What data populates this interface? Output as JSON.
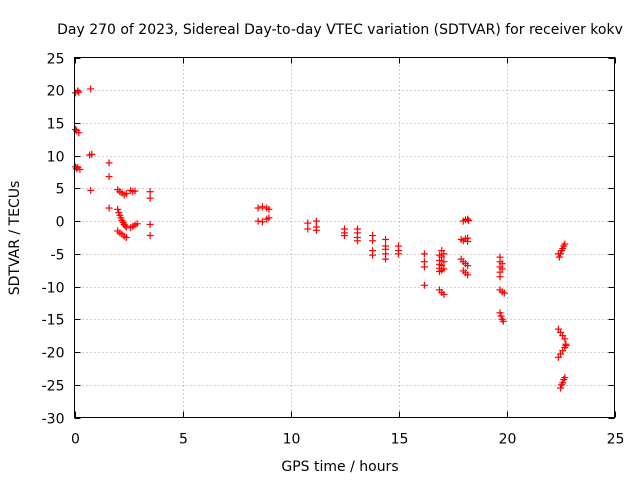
{
  "chart_data": {
    "type": "scatter",
    "title": "Day 270 of 2023, Sidereal Day-to-day VTEC variation (SDTVAR) for receiver kokv",
    "xlabel": "GPS time / hours",
    "ylabel": "SDTVAR / TECUs",
    "xlim": [
      0,
      25
    ],
    "ylim": [
      -30,
      25
    ],
    "xticks": [
      0,
      5,
      10,
      15,
      20,
      25
    ],
    "yticks": [
      -30,
      -25,
      -20,
      -15,
      -10,
      -5,
      0,
      5,
      10,
      15,
      20,
      25
    ],
    "xtick_labels": [
      "0",
      "5",
      "10",
      "15",
      "20",
      "25"
    ],
    "ytick_labels": [
      "-30",
      "-25",
      "-20",
      "-15",
      "-10",
      "-5",
      "0",
      "5",
      "10",
      "15",
      "20",
      "25"
    ],
    "grid": true,
    "marker": "+",
    "color": "#ff0000",
    "series": [
      {
        "name": "SDTVAR",
        "points": [
          [
            0.05,
            19.6
          ],
          [
            0.15,
            19.9
          ],
          [
            0.2,
            19.7
          ],
          [
            0.75,
            20.2
          ],
          [
            0.05,
            14.0
          ],
          [
            0.1,
            13.8
          ],
          [
            0.2,
            13.5
          ],
          [
            0.05,
            8.3
          ],
          [
            0.1,
            8.0
          ],
          [
            0.15,
            8.2
          ],
          [
            0.25,
            7.9
          ],
          [
            0.7,
            10.1
          ],
          [
            0.8,
            10.2
          ],
          [
            0.75,
            4.7
          ],
          [
            1.6,
            8.9
          ],
          [
            1.6,
            6.8
          ],
          [
            1.6,
            2.0
          ],
          [
            2.0,
            4.8
          ],
          [
            2.1,
            4.5
          ],
          [
            2.2,
            4.3
          ],
          [
            2.3,
            4.0
          ],
          [
            2.4,
            4.2
          ],
          [
            2.0,
            1.8
          ],
          [
            2.05,
            1.3
          ],
          [
            2.1,
            0.9
          ],
          [
            2.15,
            0.5
          ],
          [
            2.2,
            0.1
          ],
          [
            2.25,
            -0.2
          ],
          [
            2.3,
            -0.5
          ],
          [
            2.35,
            -0.7
          ],
          [
            2.4,
            -0.9
          ],
          [
            2.0,
            -1.5
          ],
          [
            2.1,
            -1.8
          ],
          [
            2.2,
            -2.0
          ],
          [
            2.3,
            -2.3
          ],
          [
            2.4,
            -2.5
          ],
          [
            2.6,
            4.7
          ],
          [
            2.7,
            4.5
          ],
          [
            2.8,
            4.6
          ],
          [
            2.6,
            -1.0
          ],
          [
            2.7,
            -0.8
          ],
          [
            2.8,
            -0.6
          ],
          [
            2.9,
            -0.4
          ],
          [
            3.5,
            4.5
          ],
          [
            3.5,
            3.5
          ],
          [
            3.5,
            -0.5
          ],
          [
            3.5,
            -2.2
          ],
          [
            8.5,
            2.0
          ],
          [
            8.7,
            2.2
          ],
          [
            8.9,
            2.0
          ],
          [
            9.0,
            1.8
          ],
          [
            8.5,
            0.0
          ],
          [
            8.7,
            -0.1
          ],
          [
            8.9,
            0.3
          ],
          [
            9.0,
            0.5
          ],
          [
            10.8,
            -0.3
          ],
          [
            10.8,
            -1.2
          ],
          [
            11.2,
            0.0
          ],
          [
            11.2,
            -0.9
          ],
          [
            11.2,
            -1.4
          ],
          [
            12.5,
            -1.2
          ],
          [
            12.5,
            -1.8
          ],
          [
            12.5,
            -2.2
          ],
          [
            13.1,
            -1.2
          ],
          [
            13.1,
            -1.8
          ],
          [
            13.1,
            -2.5
          ],
          [
            13.1,
            -3.0
          ],
          [
            13.8,
            -2.2
          ],
          [
            13.8,
            -3.0
          ],
          [
            13.8,
            -4.5
          ],
          [
            13.8,
            -5.2
          ],
          [
            14.4,
            -2.8
          ],
          [
            14.4,
            -3.8
          ],
          [
            14.4,
            -4.3
          ],
          [
            14.4,
            -5.0
          ],
          [
            14.4,
            -5.8
          ],
          [
            15.0,
            -3.8
          ],
          [
            15.0,
            -4.5
          ],
          [
            15.0,
            -5.0
          ],
          [
            16.2,
            -5.0
          ],
          [
            16.2,
            -6.2
          ],
          [
            16.2,
            -7.0
          ],
          [
            16.2,
            -9.8
          ],
          [
            16.9,
            -5.2
          ],
          [
            16.9,
            -6.0
          ],
          [
            16.9,
            -6.6
          ],
          [
            16.9,
            -7.2
          ],
          [
            16.9,
            -7.7
          ],
          [
            17.0,
            -4.5
          ],
          [
            17.0,
            -5.5
          ],
          [
            17.0,
            -6.8
          ],
          [
            17.0,
            -7.5
          ],
          [
            17.1,
            -5.0
          ],
          [
            17.1,
            -6.2
          ],
          [
            17.1,
            -7.3
          ],
          [
            16.9,
            -10.5
          ],
          [
            17.0,
            -10.9
          ],
          [
            17.1,
            -11.2
          ],
          [
            17.9,
            -2.8
          ],
          [
            18.0,
            -3.0
          ],
          [
            18.1,
            -2.7
          ],
          [
            18.2,
            -3.1
          ],
          [
            18.2,
            -2.6
          ],
          [
            17.9,
            -5.8
          ],
          [
            18.0,
            -6.2
          ],
          [
            18.1,
            -6.5
          ],
          [
            18.2,
            -6.8
          ],
          [
            18.0,
            -7.6
          ],
          [
            18.1,
            -7.9
          ],
          [
            18.2,
            -8.2
          ],
          [
            18.0,
            0.0
          ],
          [
            18.1,
            0.2
          ],
          [
            18.2,
            0.3
          ],
          [
            18.25,
            0.1
          ],
          [
            19.7,
            -5.5
          ],
          [
            19.7,
            -6.2
          ],
          [
            19.7,
            -7.0
          ],
          [
            19.7,
            -7.8
          ],
          [
            19.7,
            -8.5
          ],
          [
            19.8,
            -6.5
          ],
          [
            19.8,
            -7.3
          ],
          [
            19.7,
            -10.5
          ],
          [
            19.8,
            -10.8
          ],
          [
            19.9,
            -11.0
          ],
          [
            19.7,
            -14.0
          ],
          [
            19.75,
            -14.5
          ],
          [
            19.8,
            -15.0
          ],
          [
            19.85,
            -15.3
          ],
          [
            22.4,
            -5.0
          ],
          [
            22.45,
            -5.5
          ],
          [
            22.5,
            -5.0
          ],
          [
            22.55,
            -4.5
          ],
          [
            22.6,
            -4.2
          ],
          [
            22.65,
            -3.8
          ],
          [
            22.7,
            -3.5
          ],
          [
            22.4,
            -16.5
          ],
          [
            22.5,
            -17.0
          ],
          [
            22.6,
            -17.5
          ],
          [
            22.7,
            -18.0
          ],
          [
            22.75,
            -18.8
          ],
          [
            22.4,
            -20.8
          ],
          [
            22.5,
            -20.3
          ],
          [
            22.6,
            -19.8
          ],
          [
            22.7,
            -19.3
          ],
          [
            22.75,
            -19.0
          ],
          [
            22.5,
            -25.5
          ],
          [
            22.55,
            -25.0
          ],
          [
            22.6,
            -24.7
          ],
          [
            22.65,
            -24.2
          ],
          [
            22.7,
            -23.9
          ]
        ]
      }
    ]
  }
}
